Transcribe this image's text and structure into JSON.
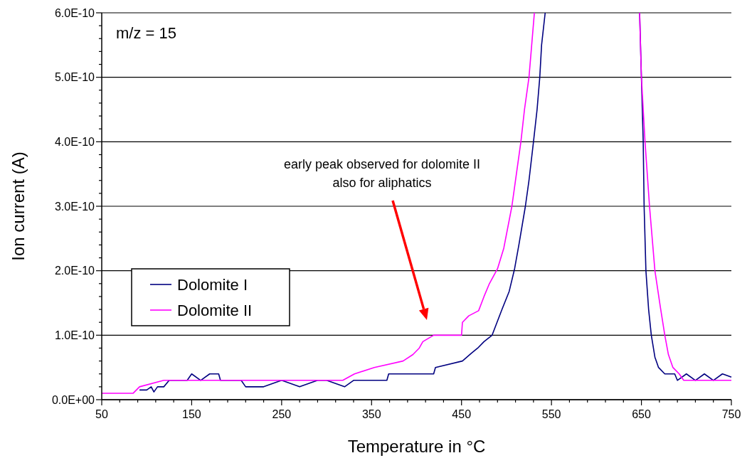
{
  "chart_data": {
    "type": "line",
    "xlabel": "Temperature in °C",
    "ylabel": "Ion current (A)",
    "xlim": [
      50,
      750
    ],
    "xticks": [
      50,
      {
        "value": 70,
        "label": null
      },
      {
        "value": 90,
        "label": null
      },
      {
        "value": 110,
        "label": null
      },
      {
        "value": 130,
        "label": null
      },
      150,
      {
        "value": 170,
        "label": null
      },
      {
        "value": 190,
        "label": null
      },
      {
        "value": 210,
        "label": null
      },
      {
        "value": 230,
        "label": null
      },
      250,
      {
        "value": 270,
        "label": null
      },
      {
        "value": 290,
        "label": null
      },
      {
        "value": 310,
        "label": null
      },
      {
        "value": 330,
        "label": null
      },
      350,
      {
        "value": 370,
        "label": null
      },
      {
        "value": 390,
        "label": null
      },
      {
        "value": 410,
        "label": null
      },
      {
        "value": 430,
        "label": null
      },
      450,
      {
        "value": 470,
        "label": null
      },
      {
        "value": 490,
        "label": null
      },
      {
        "value": 510,
        "label": null
      },
      {
        "value": 530,
        "label": null
      },
      550,
      {
        "value": 570,
        "label": null
      },
      {
        "value": 590,
        "label": null
      },
      {
        "value": 610,
        "label": null
      },
      {
        "value": 630,
        "label": null
      },
      650,
      {
        "value": 670,
        "label": null
      },
      {
        "value": 690,
        "label": null
      },
      {
        "value": 710,
        "label": null
      },
      {
        "value": 730,
        "label": null
      },
      750
    ],
    "ylim": [
      0,
      6e-10
    ],
    "yticks": [
      {
        "value": 0,
        "label": "0.0E+00"
      },
      {
        "value": 2e-11,
        "label": null
      },
      {
        "value": 4e-11,
        "label": null
      },
      {
        "value": 6e-11,
        "label": null
      },
      {
        "value": 8e-11,
        "label": null
      },
      {
        "value": 1e-10,
        "label": "1.0E-10"
      },
      {
        "value": 1.2e-10,
        "label": null
      },
      {
        "value": 1.4e-10,
        "label": null
      },
      {
        "value": 1.6e-10,
        "label": null
      },
      {
        "value": 1.8e-10,
        "label": null
      },
      {
        "value": 2e-10,
        "label": "2.0E-10"
      },
      {
        "value": 2.2e-10,
        "label": null
      },
      {
        "value": 2.4e-10,
        "label": null
      },
      {
        "value": 2.6e-10,
        "label": null
      },
      {
        "value": 2.8e-10,
        "label": null
      },
      {
        "value": 3e-10,
        "label": "3.0E-10"
      },
      {
        "value": 3.2e-10,
        "label": null
      },
      {
        "value": 3.4e-10,
        "label": null
      },
      {
        "value": 3.6e-10,
        "label": null
      },
      {
        "value": 3.8e-10,
        "label": null
      },
      {
        "value": 4e-10,
        "label": "4.0E-10"
      },
      {
        "value": 4.2e-10,
        "label": null
      },
      {
        "value": 4.4e-10,
        "label": null
      },
      {
        "value": 4.6e-10,
        "label": null
      },
      {
        "value": 4.8e-10,
        "label": null
      },
      {
        "value": 5e-10,
        "label": "5.0E-10"
      },
      {
        "value": 5.2e-10,
        "label": null
      },
      {
        "value": 5.4e-10,
        "label": null
      },
      {
        "value": 5.6e-10,
        "label": null
      },
      {
        "value": 5.8e-10,
        "label": null
      },
      {
        "value": 6e-10,
        "label": "6.0E-10"
      }
    ],
    "grid": "y",
    "legend": "left",
    "marker": "none",
    "line_style": "solid",
    "annotations": [
      "m/z = 15",
      "early peak observed for dolomite II\nalso for aliphatics"
    ],
    "series": [
      {
        "name": "Dolomite I",
        "color": "#000080",
        "x": [
          92,
          100,
          105,
          108,
          112,
          119,
          125,
          145,
          150,
          160,
          170,
          180,
          182,
          205,
          210,
          230,
          250,
          270,
          290,
          300,
          320,
          330,
          367,
          369,
          380,
          400,
          419,
          421,
          451,
          461,
          468,
          475,
          484,
          495,
          503,
          509,
          514,
          521,
          525,
          530,
          534,
          537,
          539,
          543,
          545,
          646,
          648,
          650,
          652,
          653,
          655,
          658,
          661,
          665,
          669,
          676,
          687,
          690,
          700,
          710,
          720,
          730,
          740,
          750
        ],
        "values": [
          1.5e-11,
          1.5e-11,
          2e-11,
          1.2e-11,
          2e-11,
          2e-11,
          3e-11,
          3e-11,
          4e-11,
          3e-11,
          4e-11,
          4e-11,
          3e-11,
          3e-11,
          2e-11,
          2e-11,
          3e-11,
          2e-11,
          3e-11,
          3e-11,
          2e-11,
          3e-11,
          3e-11,
          4e-11,
          4e-11,
          4e-11,
          4e-11,
          5e-11,
          6e-11,
          7.2e-11,
          8e-11,
          9e-11,
          1e-10,
          1.4e-10,
          1.68e-10,
          2.03e-10,
          2.42e-10,
          3e-10,
          3.4e-10,
          4e-10,
          4.5e-10,
          5e-10,
          5.5e-10,
          6e-10,
          null,
          null,
          6e-10,
          5e-10,
          4e-10,
          3e-10,
          2e-10,
          1.4e-10,
          1e-10,
          6.6e-11,
          5e-11,
          4e-11,
          4e-11,
          3e-11,
          4e-11,
          3e-11,
          4e-11,
          3e-11,
          4e-11,
          3.5e-11
        ]
      },
      {
        "name": "Dolomite II",
        "color": "#ff00ff",
        "x": [
          50,
          85,
          92,
          119,
          318,
          331,
          353,
          385,
          396,
          403,
          407,
          419,
          430,
          450,
          451,
          458,
          469,
          475,
          481,
          490,
          497,
          506,
          511,
          516,
          520,
          525,
          528,
          531,
          533,
          646,
          648,
          650,
          654,
          659,
          665,
          671,
          676,
          680,
          685,
          692,
          697,
          750
        ],
        "values": [
          1e-11,
          1e-11,
          2e-11,
          3e-11,
          3e-11,
          4e-11,
          5e-11,
          6e-11,
          7e-11,
          8e-11,
          9e-11,
          1e-10,
          1e-10,
          1e-10,
          1.2e-10,
          1.3e-10,
          1.38e-10,
          1.6e-10,
          1.8e-10,
          2.03e-10,
          2.35e-10,
          3e-10,
          3.5e-10,
          4e-10,
          4.5e-10,
          5e-10,
          5.5e-10,
          6e-10,
          null,
          null,
          6e-10,
          5e-10,
          4e-10,
          3e-10,
          2e-10,
          1.44e-10,
          1e-10,
          7e-11,
          5e-11,
          4e-11,
          3e-11,
          3e-11
        ]
      }
    ]
  }
}
